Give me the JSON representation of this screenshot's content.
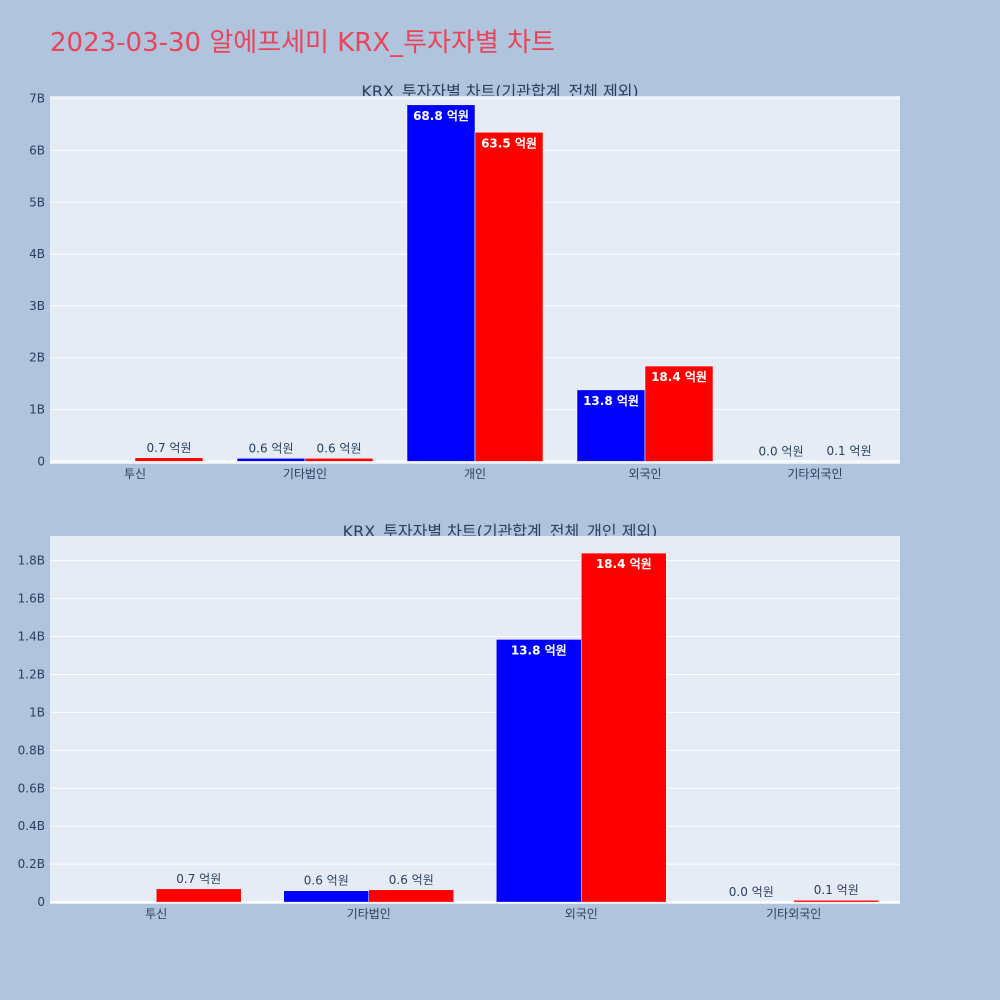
{
  "page": {
    "title": "2023-03-30 알에프세미 KRX_투자자별 차트",
    "background": "#b0c4de",
    "title_color": "#e8455a"
  },
  "colors": {
    "series_1": "#0000ff",
    "series_2": "#ff0000",
    "plot_bg": "#e5ecf6",
    "grid": "#ffffff",
    "text": "#2a3f5f"
  },
  "chart_data": [
    {
      "type": "bar",
      "title": "KRX_투자자별 차트(기관합계_전체 제외)",
      "categories": [
        "투신",
        "기타법인",
        "개인",
        "외국인",
        "기타외국인"
      ],
      "series": [
        {
          "color": "#0000ff",
          "values": [
            0,
            0.06,
            6.88,
            1.38,
            0.0
          ],
          "labels": [
            "",
            "0.6 억원",
            "68.8 억원",
            "13.8 억원",
            "0.0 억원"
          ]
        },
        {
          "color": "#ff0000",
          "values": [
            0.07,
            0.06,
            6.35,
            1.84,
            0.01
          ],
          "labels": [
            "0.7 억원",
            "0.6 억원",
            "63.5 억원",
            "18.4 억원",
            "0.1 억원"
          ]
        }
      ],
      "yticks": [
        0,
        1,
        2,
        3,
        4,
        5,
        6,
        7
      ],
      "ytick_labels": [
        "0",
        "1B",
        "2B",
        "3B",
        "4B",
        "5B",
        "6B",
        "7B"
      ],
      "ylim": [
        -0.05,
        7.05
      ],
      "grid": true
    },
    {
      "type": "bar",
      "title": "KRX_투자자별 차트(기관합계_전체_개인 제외)",
      "categories": [
        "투신",
        "기타법인",
        "외국인",
        "기타외국인"
      ],
      "series": [
        {
          "color": "#0000ff",
          "values": [
            0,
            0.06,
            1.385,
            0.0
          ],
          "labels": [
            "",
            "0.6 억원",
            "13.8 억원",
            "0.0 억원"
          ]
        },
        {
          "color": "#ff0000",
          "values": [
            0.07,
            0.065,
            1.84,
            0.01
          ],
          "labels": [
            "0.7 억원",
            "0.6 억원",
            "18.4 억원",
            "0.1 억원"
          ]
        }
      ],
      "yticks": [
        0,
        0.2,
        0.4,
        0.6,
        0.8,
        1.0,
        1.2,
        1.4,
        1.6,
        1.8
      ],
      "ytick_labels": [
        "0",
        "0.2B",
        "0.4B",
        "0.6B",
        "0.8B",
        "1B",
        "1.2B",
        "1.4B",
        "1.6B",
        "1.8B"
      ],
      "ylim": [
        -0.01,
        1.93
      ],
      "grid": true
    }
  ]
}
